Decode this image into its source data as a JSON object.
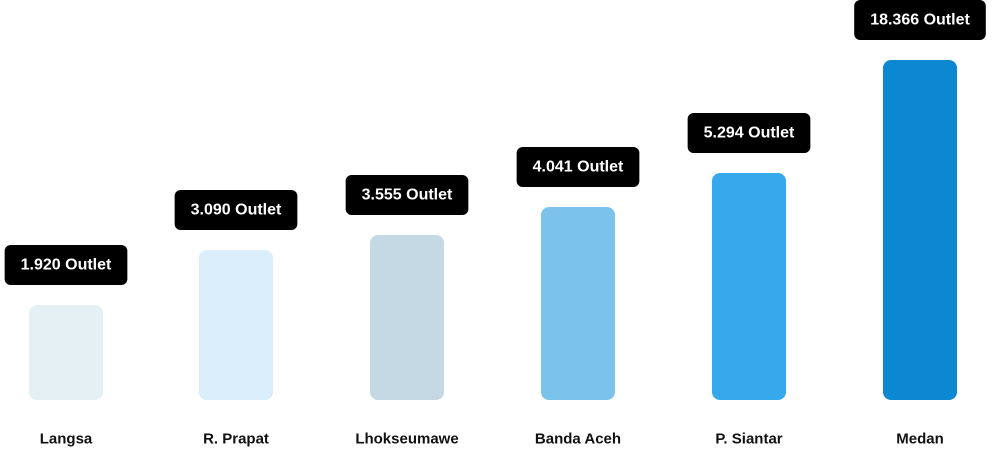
{
  "chart_data": {
    "type": "bar",
    "categories": [
      "Langsa",
      "R. Prapat",
      "Lhokseumawe",
      "Banda Aceh",
      "P. Siantar",
      "Medan"
    ],
    "values": [
      1920,
      3090,
      3555,
      4041,
      5294,
      18366
    ],
    "data_labels": [
      "1.920 Outlet",
      "3.090 Outlet",
      "3.555 Outlet",
      "4.041 Outlet",
      "5.294 Outlet",
      "18.366 Outlet"
    ],
    "bar_colors": [
      "#e4f0f4",
      "#daeefb",
      "#c5d9e4",
      "#7cc3ec",
      "#36a9ec",
      "#0c88d2"
    ],
    "label_bg_color": "#000000",
    "label_text_color": "#ffffff",
    "title": "",
    "xlabel": "",
    "ylabel": "",
    "grid": false,
    "legend": false
  }
}
